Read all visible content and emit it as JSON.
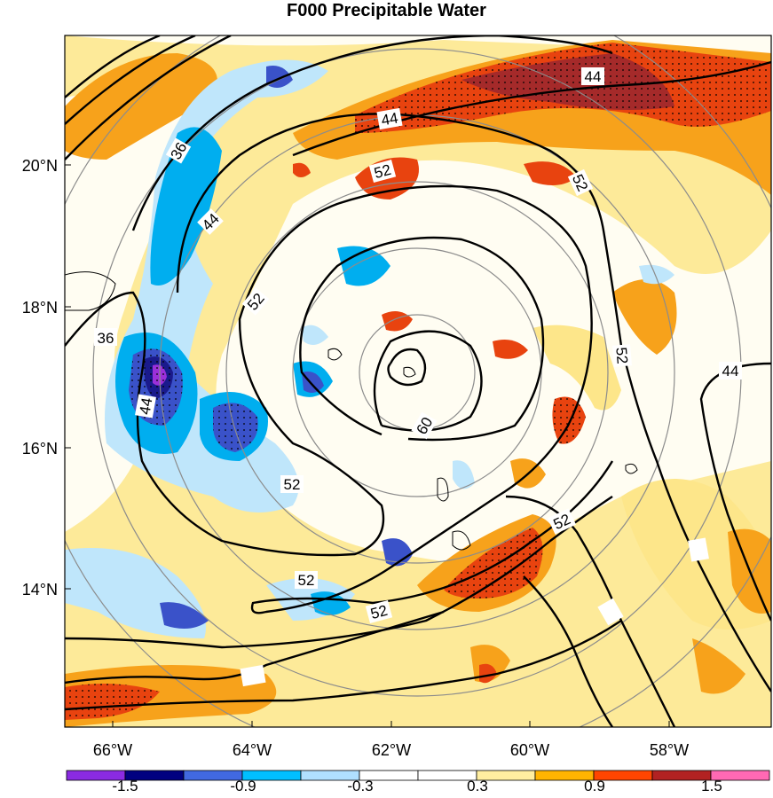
{
  "title": "F000 Precipitable Water",
  "lat_labels": [
    "20°N",
    "18°N",
    "16°N",
    "14°N"
  ],
  "lon_labels": [
    "66°W",
    "64°W",
    "62°W",
    "60°W",
    "58°W"
  ],
  "contour_labels": [
    "36",
    "36",
    "44",
    "44",
    "44",
    "44",
    "44",
    "52",
    "52",
    "52",
    "52",
    "52",
    "52",
    "52",
    "52",
    "60"
  ],
  "colorbar": {
    "labels": [
      "-1.5",
      "-0.9",
      "-0.3",
      "0.3",
      "0.9",
      "1.5"
    ],
    "colors": [
      "#8a2be2",
      "#000080",
      "#4169e1",
      "#00bfff",
      "#b0e0ff",
      "#ffffff",
      "#ffffff",
      "#ffeea0",
      "#ffb400",
      "#ff4500",
      "#b22222",
      "#ff69b4"
    ]
  },
  "map_colors": {
    "orange": "#f7a21b",
    "lightorange": "#fde68a",
    "red": "#e8430f",
    "darkred": "#a52a2a",
    "blue": "#00aeef",
    "lightblue": "#bfe6fb",
    "navy": "#1a1a8c",
    "royal": "#3a52c9",
    "purple": "#9b30d9"
  }
}
